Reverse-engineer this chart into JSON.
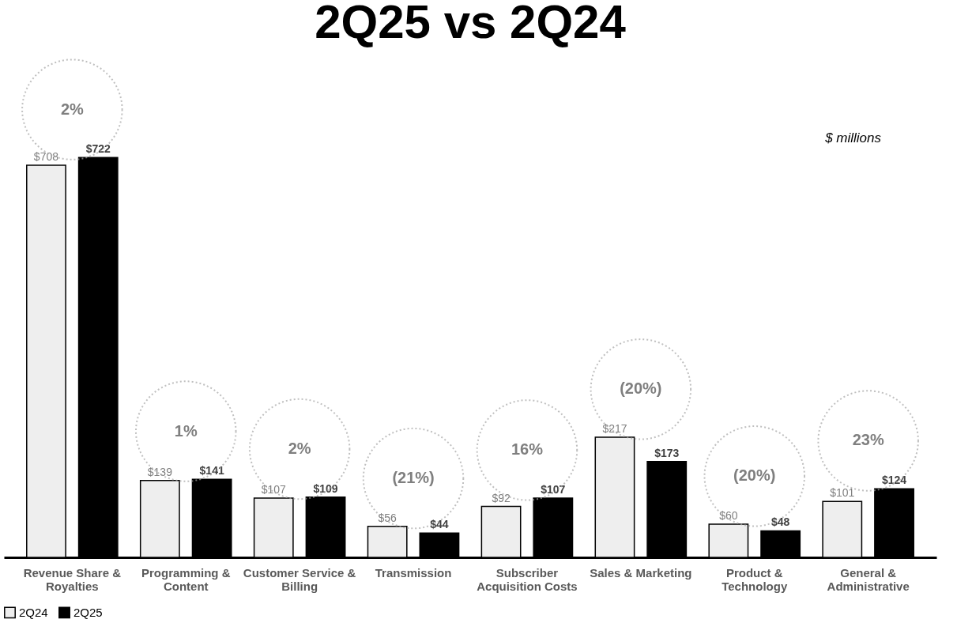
{
  "chart_data": {
    "type": "bar",
    "title": "2Q25 vs 2Q24",
    "categories": [
      "Revenue Share & Royalties",
      "Programming & Content",
      "Customer Service & Billing",
      "Transmission",
      "Subscriber Acquisition Costs",
      "Sales & Marketing",
      "Product & Technology",
      "General & Administrative"
    ],
    "series": [
      {
        "name": "2Q24",
        "color": "#eeeeee",
        "values": [
          708,
          139,
          107,
          56,
          92,
          217,
          60,
          101
        ],
        "value_labels": [
          "$708",
          "$139",
          "$107",
          "$56",
          "$92",
          "$217",
          "$60",
          "$101"
        ]
      },
      {
        "name": "2Q25",
        "color": "#000000",
        "values": [
          722,
          141,
          109,
          44,
          107,
          173,
          48,
          124
        ],
        "value_labels": [
          "$722",
          "$141",
          "$109",
          "$44",
          "$107",
          "$173",
          "$48",
          "$124"
        ]
      }
    ],
    "annotations": [
      "2%",
      "1%",
      "2%",
      "(21%)",
      "16%",
      "(20%)",
      "(20%)",
      "23%",
      "$ millions"
    ],
    "legend": "bottom",
    "grid": false
  }
}
